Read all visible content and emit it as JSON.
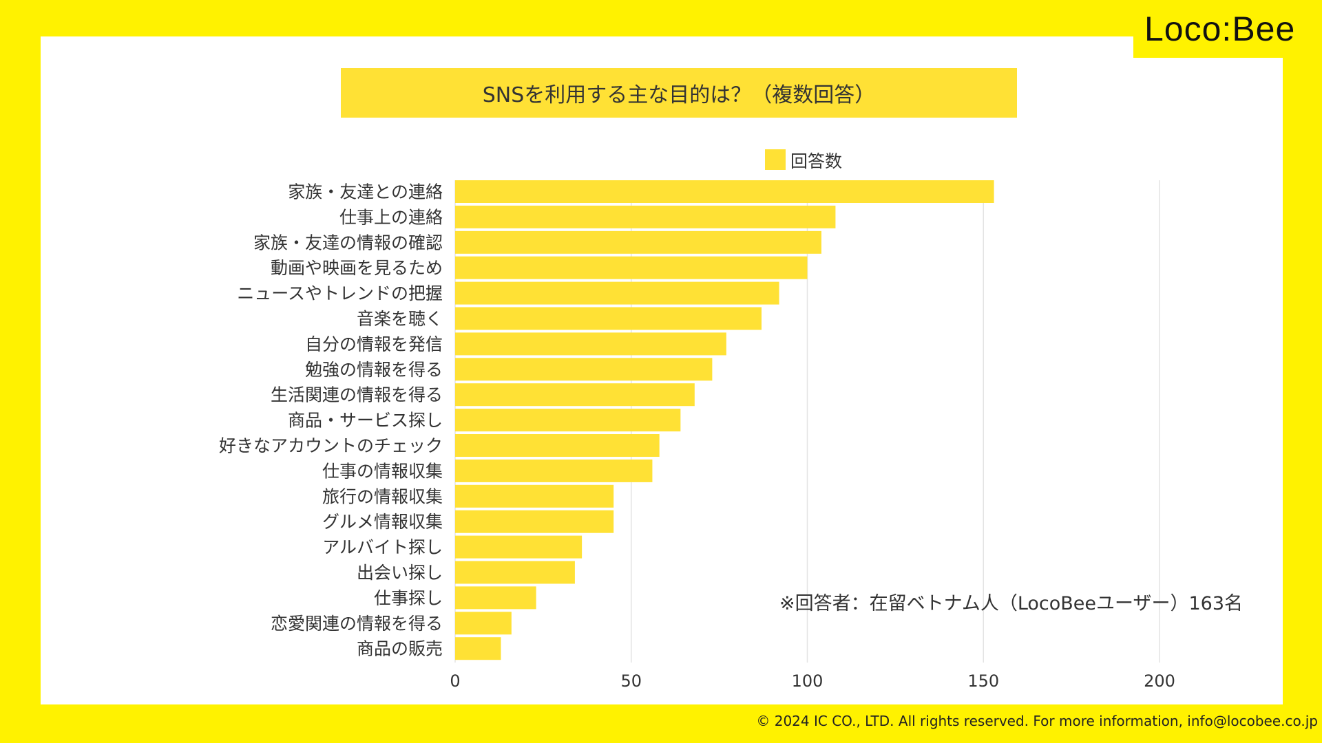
{
  "brand": {
    "logo_text": "Loco:Bee"
  },
  "chart_data": {
    "type": "bar",
    "orientation": "horizontal",
    "title": "SNSを利用する主な目的は？（複数回答）",
    "categories": [
      "家族・友達との連絡",
      "仕事上の連絡",
      "家族・友達の情報の確認",
      "動画や映画を見るため",
      "ニュースやトレンドの把握",
      "音楽を聴く",
      "自分の情報を発信",
      "勉強の情報を得る",
      "生活関連の情報を得る",
      "商品・サービス探し",
      "好きなアカウントのチェック",
      "仕事の情報収集",
      "旅行の情報収集",
      "グルメ情報収集",
      "アルバイト探し",
      "出会い探し",
      "仕事探し",
      "恋愛関連の情報を得る",
      "商品の販売"
    ],
    "series": [
      {
        "name": "回答数",
        "color": "#FFE135",
        "values": [
          153,
          108,
          104,
          100,
          92,
          87,
          77,
          73,
          68,
          64,
          58,
          56,
          45,
          45,
          36,
          34,
          23,
          16,
          13
        ]
      }
    ],
    "xlim": [
      0,
      225
    ],
    "xticks": [
      "0",
      "50",
      "100",
      "150",
      "200"
    ],
    "xtick_values": [
      0,
      50,
      100,
      150,
      200
    ],
    "grid": true,
    "legend_position": "top-center",
    "annotation": "※回答者：在留ベトナム人（LocoBeeユーザー）163名"
  },
  "footer": {
    "copyright": "© 2024 IC CO., LTD. All rights reserved. For more information, info@locobee.co.jp"
  }
}
